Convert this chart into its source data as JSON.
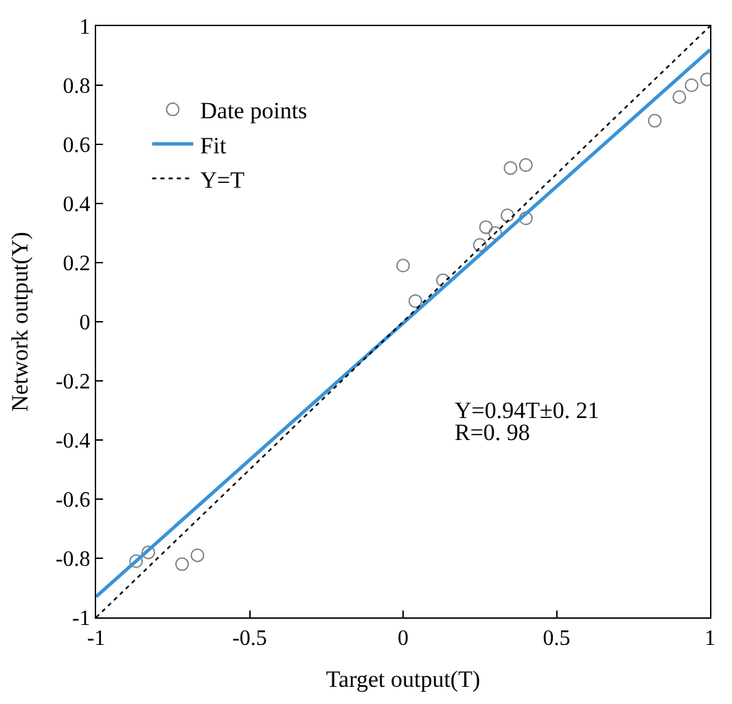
{
  "chart_data": {
    "type": "scatter",
    "xlabel": "Target output(T)",
    "ylabel": "Network output(Y)",
    "xlim": [
      -1,
      1
    ],
    "ylim": [
      -1,
      1
    ],
    "xticks": [
      -1,
      -0.5,
      0,
      0.5,
      1
    ],
    "yticks": [
      -1,
      -0.8,
      -0.6,
      -0.4,
      -0.2,
      0,
      0.2,
      0.4,
      0.6,
      0.8,
      1
    ],
    "legend": "top left",
    "series": [
      {
        "name": "Date points",
        "marker": "circle",
        "color": "#808080",
        "x": [
          -0.87,
          -0.83,
          -0.72,
          -0.67,
          0.0,
          0.04,
          0.13,
          0.25,
          0.27,
          0.3,
          0.34,
          0.35,
          0.4,
          0.4,
          0.82,
          0.9,
          0.94,
          0.99
        ],
        "values": [
          -0.81,
          -0.78,
          -0.82,
          -0.79,
          0.19,
          0.07,
          0.14,
          0.26,
          0.32,
          0.3,
          0.36,
          0.52,
          0.35,
          0.53,
          0.68,
          0.76,
          0.8,
          0.82
        ]
      },
      {
        "name": "Fit",
        "type": "line",
        "line_style": "solid",
        "color": "#3a93d6",
        "x": [
          -1,
          1
        ],
        "values": [
          -0.93,
          0.92
        ]
      },
      {
        "name": "Y=T",
        "type": "line",
        "line_style": "dotted",
        "color": "#000000",
        "x": [
          -1,
          1
        ],
        "values": [
          -1,
          1
        ]
      }
    ],
    "annotations": [
      {
        "text": "Y=0.94T±0. 21"
      },
      {
        "text": "R=0. 98"
      }
    ]
  }
}
